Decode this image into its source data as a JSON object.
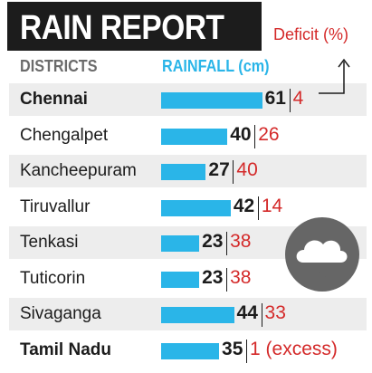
{
  "chart_data": {
    "type": "bar",
    "title": "RAIN REPORT",
    "category_header": "DISTRICTS",
    "value_header": "RAINFALL (cm)",
    "secondary_header": "Deficit (%)",
    "categories": [
      "Chennai",
      "Chengalpet",
      "Kancheepuram",
      "Tiruvallur",
      "Tenkasi",
      "Tuticorin",
      "Sivaganga",
      "Tamil Nadu"
    ],
    "series": [
      {
        "name": "RAINFALL (cm)",
        "values": [
          61,
          40,
          27,
          42,
          23,
          23,
          44,
          35
        ]
      }
    ],
    "deficit": [
      "4",
      "26",
      "40",
      "14",
      "38",
      "38",
      "33",
      "1 (excess)"
    ],
    "bold_rows": [
      true,
      false,
      false,
      false,
      false,
      false,
      false,
      true
    ]
  },
  "colors": {
    "bar": "#2ab5e8",
    "deficit_text": "#d42a2a",
    "title_background": "#1c1c1c",
    "row_shade": "#ededed"
  },
  "icons": {
    "weather": "rain-cloud-icon",
    "pointer": "corner-arrow-up-icon"
  }
}
